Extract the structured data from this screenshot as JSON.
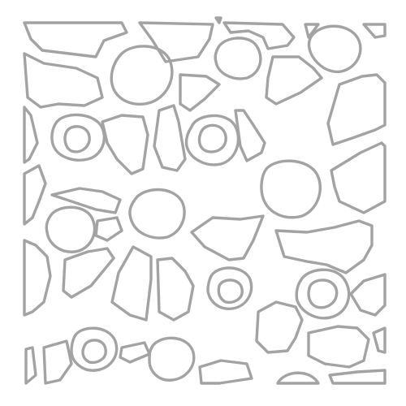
{
  "artwork": {
    "subject": "stencil-pattern",
    "colors": {
      "background": "#ffffff",
      "outline": "#a3a3a3"
    }
  }
}
